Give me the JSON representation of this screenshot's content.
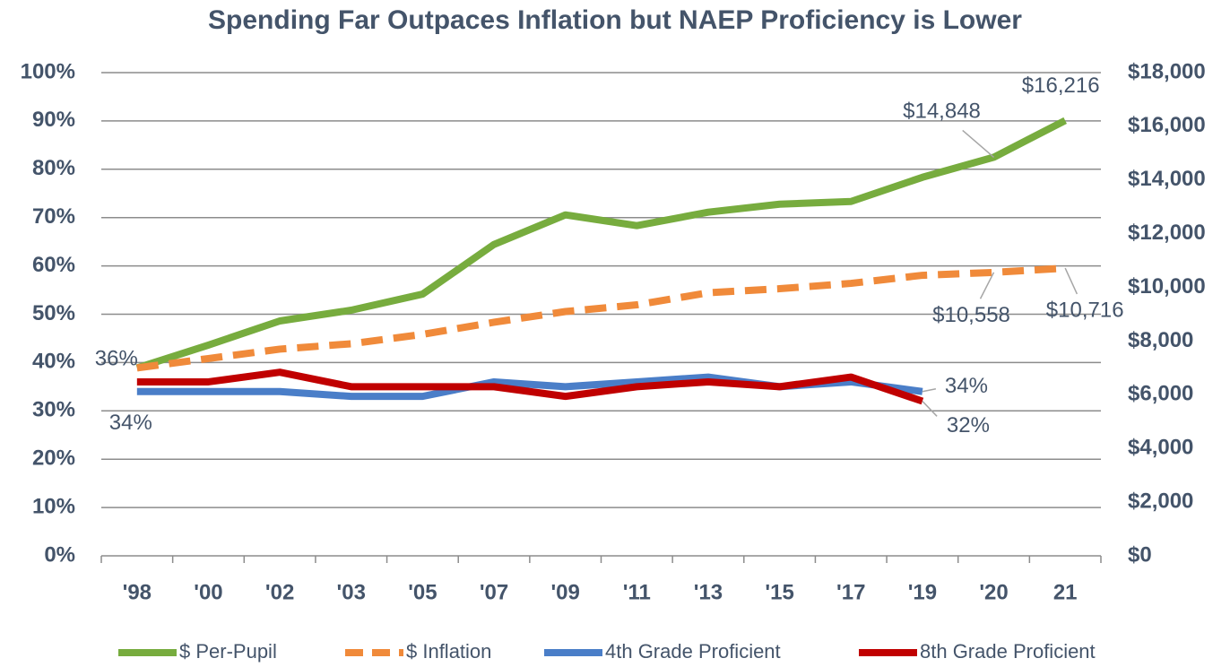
{
  "chart_data": {
    "type": "line",
    "title": "Spending Far Outpaces Inflation but NAEP Proficiency is Lower",
    "categories": [
      "'98",
      "'00",
      "'02",
      "'03",
      "'05",
      "'07",
      "'09",
      "'11",
      "'13",
      "'15",
      "'17",
      "'19",
      "'20",
      "21"
    ],
    "ylim": [
      0,
      100
    ],
    "yticks": [
      {
        "value": 0,
        "label": "0%"
      },
      {
        "value": 10,
        "label": "10%"
      },
      {
        "value": 20,
        "label": "20%"
      },
      {
        "value": 30,
        "label": "30%"
      },
      {
        "value": 40,
        "label": "40%"
      },
      {
        "value": 50,
        "label": "50%"
      },
      {
        "value": 60,
        "label": "60%"
      },
      {
        "value": 70,
        "label": "70%"
      },
      {
        "value": 80,
        "label": "80%"
      },
      {
        "value": 90,
        "label": "90%"
      },
      {
        "value": 100,
        "label": "100%"
      }
    ],
    "y2lim": [
      0,
      18000
    ],
    "y2ticks": [
      {
        "value": 0,
        "label": "$0"
      },
      {
        "value": 2000,
        "label": "$2,000"
      },
      {
        "value": 4000,
        "label": "$4,000"
      },
      {
        "value": 6000,
        "label": "$6,000"
      },
      {
        "value": 8000,
        "label": "$8,000"
      },
      {
        "value": 10000,
        "label": "$10,000"
      },
      {
        "value": 12000,
        "label": "$12,000"
      },
      {
        "value": 14000,
        "label": "$14,000"
      },
      {
        "value": 16000,
        "label": "$16,000"
      },
      {
        "value": 18000,
        "label": "$18,000"
      }
    ],
    "grid": true,
    "legend": "bottom",
    "series": [
      {
        "name": "$ Per-Pupil",
        "color": "#77ac3e",
        "axis": "y2",
        "dashed": false,
        "values": [
          7000,
          7850,
          8750,
          9150,
          9750,
          11600,
          12700,
          12300,
          12800,
          13100,
          13200,
          14100,
          14848,
          16216
        ],
        "value_labels": [
          null,
          null,
          null,
          null,
          null,
          null,
          null,
          null,
          null,
          null,
          null,
          null,
          "$14,848",
          "$16,216"
        ]
      },
      {
        "name": "$ Inflation",
        "color": "#f08a3a",
        "axis": "y2",
        "dashed": true,
        "values": [
          7000,
          7350,
          7700,
          7900,
          8250,
          8700,
          9100,
          9350,
          9800,
          9950,
          10150,
          10450,
          10558,
          10716
        ],
        "value_labels": [
          null,
          null,
          null,
          null,
          null,
          null,
          null,
          null,
          null,
          null,
          null,
          null,
          "$10,558",
          "$10,716"
        ]
      },
      {
        "name": "4th Grade Proficient",
        "color": "#4a7ec8",
        "axis": "y",
        "dashed": false,
        "values": [
          34,
          34,
          34,
          33,
          33,
          36,
          35,
          36,
          37,
          35,
          36,
          34,
          null,
          null
        ],
        "value_labels": [
          "34%",
          null,
          null,
          null,
          null,
          null,
          null,
          null,
          null,
          null,
          null,
          "34%",
          null,
          null
        ]
      },
      {
        "name": "8th Grade Proficient",
        "color": "#c00000",
        "axis": "y",
        "dashed": false,
        "values": [
          36,
          36,
          38,
          35,
          35,
          35,
          33,
          35,
          36,
          35,
          37,
          32,
          null,
          null
        ],
        "value_labels": [
          "36%",
          null,
          null,
          null,
          null,
          null,
          null,
          null,
          null,
          null,
          null,
          "32%",
          null,
          null
        ]
      }
    ]
  }
}
